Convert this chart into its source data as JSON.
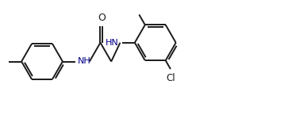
{
  "bg_color": "#ffffff",
  "line_color": "#1a1a1a",
  "text_color": "#1a1a1a",
  "nh_color": "#00008b",
  "lw": 1.4,
  "figsize": [
    3.73,
    1.55
  ],
  "dpi": 100,
  "xlim": [
    0,
    7.46
  ],
  "ylim": [
    -0.5,
    2.5
  ]
}
